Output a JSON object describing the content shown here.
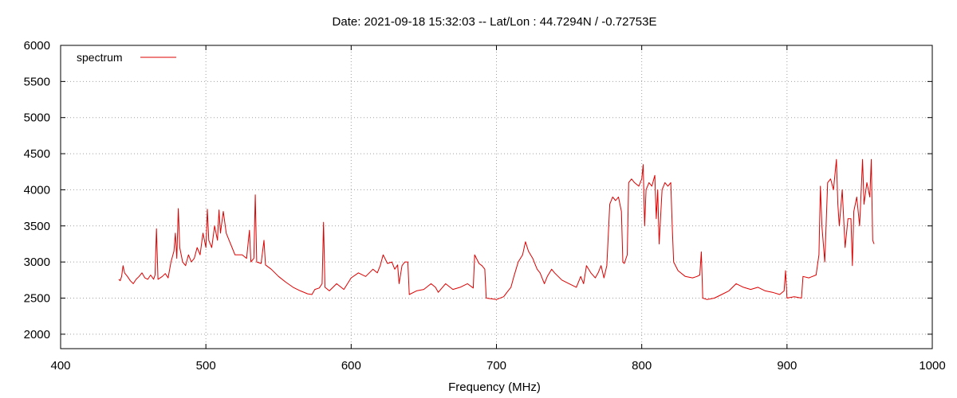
{
  "chart_data": {
    "type": "line",
    "title": "Date: 2021-09-18 15:32:03  --  Lat/Lon : 44.7294N / -0.72753E",
    "xlabel": "Frequency (MHz)",
    "ylabel": "",
    "xlim": [
      400,
      1000
    ],
    "ylim": [
      1800,
      6000
    ],
    "xticks": [
      400,
      500,
      600,
      700,
      800,
      900,
      1000
    ],
    "yticks": [
      2000,
      2500,
      3000,
      3500,
      4000,
      4500,
      5000,
      5500,
      6000
    ],
    "grid": true,
    "legend_position": "top-left",
    "series": [
      {
        "name": "spectrum",
        "color": "#dd0000",
        "points": [
          [
            440,
            2760
          ],
          [
            441,
            2740
          ],
          [
            442,
            2800
          ],
          [
            443,
            2950
          ],
          [
            444,
            2850
          ],
          [
            446,
            2800
          ],
          [
            448,
            2740
          ],
          [
            450,
            2700
          ],
          [
            452,
            2760
          ],
          [
            454,
            2800
          ],
          [
            456,
            2850
          ],
          [
            458,
            2780
          ],
          [
            460,
            2760
          ],
          [
            462,
            2820
          ],
          [
            464,
            2760
          ],
          [
            465,
            2820
          ],
          [
            466,
            3460
          ],
          [
            467,
            2760
          ],
          [
            470,
            2800
          ],
          [
            472,
            2840
          ],
          [
            474,
            2780
          ],
          [
            476,
            3000
          ],
          [
            478,
            3150
          ],
          [
            479,
            3400
          ],
          [
            480,
            3050
          ],
          [
            481,
            3740
          ],
          [
            482,
            3200
          ],
          [
            484,
            3000
          ],
          [
            486,
            2950
          ],
          [
            488,
            3100
          ],
          [
            490,
            3000
          ],
          [
            492,
            3050
          ],
          [
            494,
            3200
          ],
          [
            496,
            3100
          ],
          [
            498,
            3400
          ],
          [
            500,
            3200
          ],
          [
            501,
            3730
          ],
          [
            502,
            3300
          ],
          [
            504,
            3200
          ],
          [
            506,
            3500
          ],
          [
            508,
            3300
          ],
          [
            509,
            3720
          ],
          [
            510,
            3400
          ],
          [
            512,
            3700
          ],
          [
            514,
            3400
          ],
          [
            516,
            3300
          ],
          [
            518,
            3200
          ],
          [
            520,
            3100
          ],
          [
            525,
            3100
          ],
          [
            528,
            3050
          ],
          [
            530,
            3440
          ],
          [
            531,
            3000
          ],
          [
            533,
            3050
          ],
          [
            534,
            3930
          ],
          [
            535,
            3000
          ],
          [
            538,
            2980
          ],
          [
            540,
            3300
          ],
          [
            541,
            2960
          ],
          [
            545,
            2900
          ],
          [
            550,
            2800
          ],
          [
            555,
            2720
          ],
          [
            560,
            2650
          ],
          [
            565,
            2600
          ],
          [
            570,
            2560
          ],
          [
            573,
            2550
          ],
          [
            575,
            2620
          ],
          [
            578,
            2640
          ],
          [
            580,
            2700
          ],
          [
            581,
            3550
          ],
          [
            582,
            2650
          ],
          [
            585,
            2600
          ],
          [
            590,
            2700
          ],
          [
            595,
            2620
          ],
          [
            600,
            2780
          ],
          [
            605,
            2850
          ],
          [
            610,
            2800
          ],
          [
            615,
            2900
          ],
          [
            618,
            2850
          ],
          [
            620,
            2950
          ],
          [
            622,
            3100
          ],
          [
            625,
            2980
          ],
          [
            628,
            3000
          ],
          [
            630,
            2900
          ],
          [
            632,
            2960
          ],
          [
            633,
            2700
          ],
          [
            635,
            2950
          ],
          [
            637,
            3000
          ],
          [
            639,
            3000
          ],
          [
            640,
            2550
          ],
          [
            645,
            2600
          ],
          [
            650,
            2620
          ],
          [
            655,
            2700
          ],
          [
            658,
            2650
          ],
          [
            660,
            2580
          ],
          [
            665,
            2700
          ],
          [
            670,
            2620
          ],
          [
            675,
            2650
          ],
          [
            680,
            2700
          ],
          [
            684,
            2640
          ],
          [
            685,
            3100
          ],
          [
            688,
            2980
          ],
          [
            690,
            2950
          ],
          [
            692,
            2900
          ],
          [
            693,
            2500
          ],
          [
            700,
            2480
          ],
          [
            705,
            2520
          ],
          [
            708,
            2600
          ],
          [
            710,
            2650
          ],
          [
            712,
            2800
          ],
          [
            715,
            3000
          ],
          [
            718,
            3100
          ],
          [
            720,
            3280
          ],
          [
            722,
            3150
          ],
          [
            725,
            3050
          ],
          [
            728,
            2900
          ],
          [
            730,
            2850
          ],
          [
            733,
            2700
          ],
          [
            735,
            2800
          ],
          [
            738,
            2900
          ],
          [
            740,
            2850
          ],
          [
            745,
            2750
          ],
          [
            750,
            2700
          ],
          [
            755,
            2650
          ],
          [
            758,
            2800
          ],
          [
            760,
            2700
          ],
          [
            762,
            2950
          ],
          [
            765,
            2850
          ],
          [
            768,
            2780
          ],
          [
            770,
            2850
          ],
          [
            772,
            2950
          ],
          [
            774,
            2780
          ],
          [
            776,
            2950
          ],
          [
            778,
            3800
          ],
          [
            780,
            3900
          ],
          [
            782,
            3850
          ],
          [
            784,
            3900
          ],
          [
            786,
            3700
          ],
          [
            787,
            3000
          ],
          [
            788,
            2980
          ],
          [
            790,
            3100
          ],
          [
            791,
            4100
          ],
          [
            793,
            4150
          ],
          [
            795,
            4100
          ],
          [
            798,
            4050
          ],
          [
            800,
            4150
          ],
          [
            801,
            4350
          ],
          [
            802,
            3500
          ],
          [
            803,
            4000
          ],
          [
            805,
            4100
          ],
          [
            807,
            4050
          ],
          [
            809,
            4200
          ],
          [
            810,
            3600
          ],
          [
            811,
            4000
          ],
          [
            812,
            3250
          ],
          [
            814,
            4000
          ],
          [
            816,
            4100
          ],
          [
            818,
            4050
          ],
          [
            820,
            4100
          ],
          [
            821,
            3500
          ],
          [
            822,
            3000
          ],
          [
            825,
            2880
          ],
          [
            830,
            2800
          ],
          [
            835,
            2780
          ],
          [
            838,
            2800
          ],
          [
            840,
            2820
          ],
          [
            841,
            3140
          ],
          [
            842,
            2500
          ],
          [
            845,
            2480
          ],
          [
            850,
            2500
          ],
          [
            855,
            2550
          ],
          [
            860,
            2600
          ],
          [
            865,
            2700
          ],
          [
            870,
            2650
          ],
          [
            875,
            2620
          ],
          [
            880,
            2650
          ],
          [
            885,
            2600
          ],
          [
            890,
            2580
          ],
          [
            895,
            2550
          ],
          [
            898,
            2600
          ],
          [
            899,
            2880
          ],
          [
            900,
            2500
          ],
          [
            905,
            2520
          ],
          [
            910,
            2500
          ],
          [
            911,
            2800
          ],
          [
            915,
            2780
          ],
          [
            920,
            2820
          ],
          [
            922,
            3100
          ],
          [
            923,
            4050
          ],
          [
            924,
            3500
          ],
          [
            926,
            3000
          ],
          [
            928,
            4100
          ],
          [
            930,
            4150
          ],
          [
            932,
            4000
          ],
          [
            934,
            4420
          ],
          [
            935,
            3800
          ],
          [
            936,
            3500
          ],
          [
            938,
            4000
          ],
          [
            940,
            3200
          ],
          [
            942,
            3600
          ],
          [
            944,
            3600
          ],
          [
            945,
            2950
          ],
          [
            946,
            3700
          ],
          [
            948,
            3900
          ],
          [
            950,
            3500
          ],
          [
            952,
            4420
          ],
          [
            953,
            3800
          ],
          [
            955,
            4100
          ],
          [
            957,
            3900
          ],
          [
            958,
            4420
          ],
          [
            959,
            3300
          ],
          [
            960,
            3250
          ]
        ]
      }
    ]
  }
}
